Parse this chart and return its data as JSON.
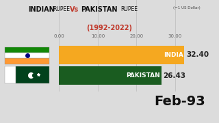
{
  "india_value": 32.4,
  "pakistan_value": 26.43,
  "india_label": "INDIA",
  "pakistan_label": "PAKISTAN",
  "india_bar_color": "#F5A820",
  "pakistan_bar_color": "#1A5C20",
  "x_ticks": [
    0,
    10,
    20,
    30
  ],
  "x_max": 34,
  "date_label": "Feb-93",
  "bg_color": "#DCDCDC",
  "title_vs_color": "#C0392B",
  "title_year_color": "#C0392B",
  "date_color": "#111111",
  "india_flag_orange": "#FF9933",
  "india_flag_white": "#FFFFFF",
  "india_flag_green": "#138808",
  "india_flag_chakra": "#000080",
  "pak_flag_white": "#FFFFFF",
  "pak_flag_green": "#01411C"
}
